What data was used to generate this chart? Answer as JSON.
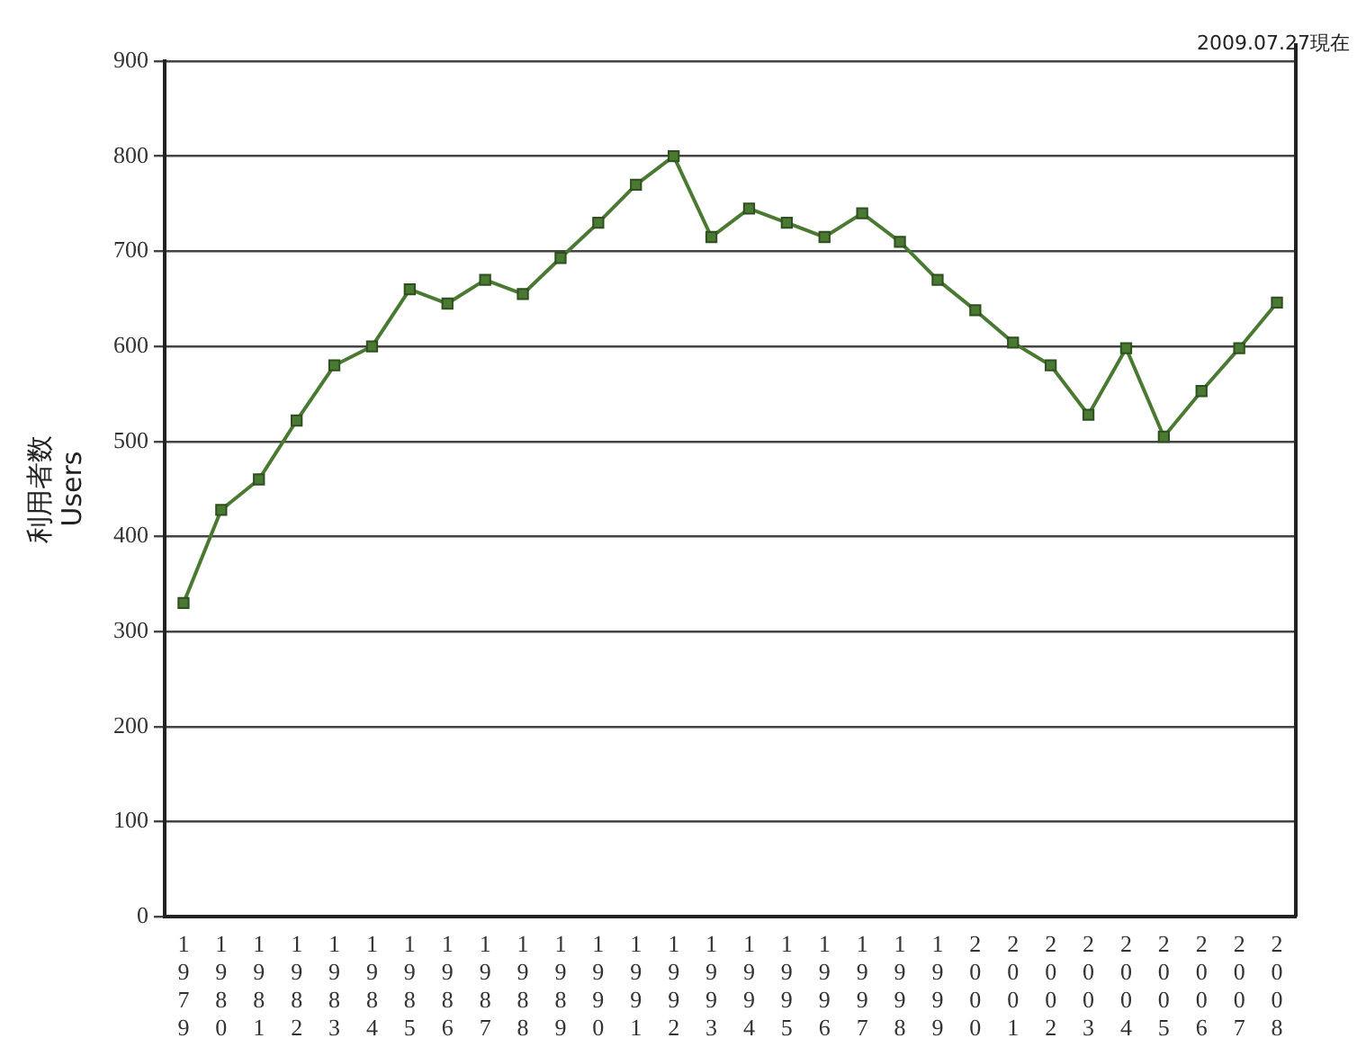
{
  "chart_data": {
    "type": "line",
    "ylabel": "利用者数\nUsers",
    "annotations": [
      "2009.07.27現在"
    ],
    "categories": [
      "1979",
      "1980",
      "1981",
      "1982",
      "1983",
      "1984",
      "1985",
      "1986",
      "1987",
      "1988",
      "1989",
      "1990",
      "1991",
      "1992",
      "1993",
      "1994",
      "1995",
      "1996",
      "1997",
      "1998",
      "1999",
      "2000",
      "2001",
      "2002",
      "2003",
      "2004",
      "2005",
      "2006",
      "2007",
      "2008"
    ],
    "series": [
      {
        "color": "#4a7a32",
        "values": [
          330,
          428,
          460,
          522,
          580,
          600,
          660,
          645,
          670,
          655,
          693,
          730,
          770,
          800,
          715,
          745,
          730,
          715,
          740,
          710,
          670,
          638,
          604,
          580,
          528,
          598,
          505,
          553,
          598,
          646
        ]
      }
    ],
    "ylim": [
      0,
      900
    ],
    "yticks": [
      0,
      100,
      200,
      300,
      400,
      500,
      600,
      700,
      800,
      900
    ],
    "grid": "y",
    "legend": false,
    "marker": "square",
    "line_style": "solid"
  }
}
